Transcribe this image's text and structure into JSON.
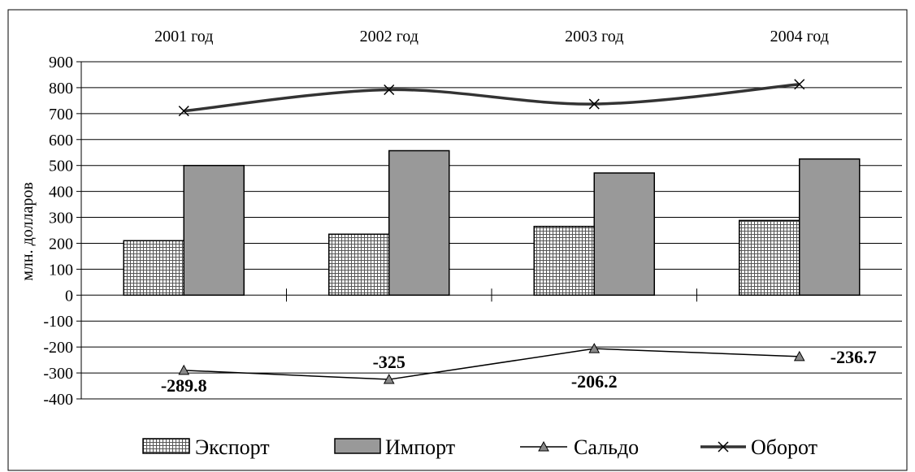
{
  "chart_data": {
    "type": "bar",
    "categories": [
      "2001 год",
      "2002 год",
      "2003 год",
      "2004 год"
    ],
    "ylabel": "млн. долларов",
    "ylim": [
      -400,
      900
    ],
    "yticks": [
      900,
      800,
      700,
      600,
      500,
      400,
      300,
      200,
      100,
      0,
      -100,
      -200,
      -300,
      -400
    ],
    "grid": true,
    "legend_position": "bottom",
    "series": [
      {
        "name": "Экспорт",
        "type": "bar",
        "pattern": "crosshatch",
        "color": "#ffffff",
        "values": [
          210,
          235,
          265,
          288
        ]
      },
      {
        "name": "Импорт",
        "type": "bar",
        "color": "#999999",
        "values": [
          500,
          557,
          471,
          525
        ]
      },
      {
        "name": "Сальдо",
        "type": "line",
        "marker": "triangle",
        "color": "#000000",
        "values": [
          -289.8,
          -325,
          -206.2,
          -236.7
        ],
        "data_labels": [
          "-289.8",
          "-325",
          "-206.2",
          "-236.7"
        ]
      },
      {
        "name": "Оборот",
        "type": "line",
        "marker": "x",
        "color": "#333333",
        "values": [
          710,
          792,
          737,
          813
        ]
      }
    ]
  }
}
